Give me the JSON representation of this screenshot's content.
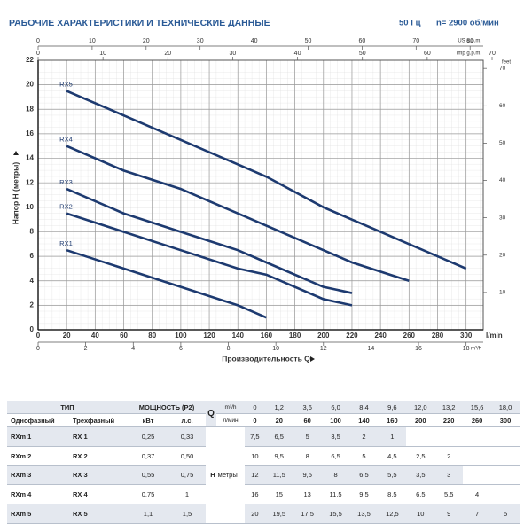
{
  "header": {
    "title": "РАБОЧИЕ ХАРАКТЕРИСТИКИ И ТЕХНИЧЕСКИЕ ДАННЫЕ",
    "frequency": "50 Гц",
    "speed": "n= 2900 об/мин"
  },
  "chart_data": {
    "type": "line",
    "xlabel": "Производительность Q",
    "ylabel": "Напор H (метры)",
    "xunit": "l/min",
    "xlim": [
      0,
      312
    ],
    "xticks": [
      0,
      20,
      40,
      60,
      80,
      100,
      120,
      140,
      160,
      180,
      200,
      220,
      240,
      260,
      280,
      300
    ],
    "ylim": [
      0,
      22
    ],
    "yticks": [
      0,
      2,
      4,
      6,
      8,
      10,
      12,
      14,
      16,
      18,
      20,
      22
    ],
    "grid": true,
    "us_gpm": {
      "label": "US g.p.m.",
      "ticks": [
        0,
        10,
        20,
        30,
        40,
        50,
        60,
        70,
        80
      ]
    },
    "imp_gpm": {
      "label": "Imp g.p.m.",
      "ticks": [
        0,
        10,
        20,
        30,
        40,
        50,
        60,
        70
      ]
    },
    "m3h": {
      "label": "m³/h",
      "ticks": [
        0,
        2,
        4,
        6,
        8,
        10,
        12,
        14,
        16,
        18
      ]
    },
    "feet": {
      "label": "feet",
      "ticks": [
        10,
        20,
        30,
        40,
        50,
        60,
        70
      ]
    },
    "series": [
      {
        "name": "RX1",
        "color": "#1d3a70",
        "x": [
          20,
          60,
          100,
          140,
          160
        ],
        "values": [
          6.5,
          5,
          3.5,
          2,
          1
        ]
      },
      {
        "name": "RX2",
        "color": "#1d3a70",
        "x": [
          20,
          60,
          100,
          140,
          160,
          200,
          220
        ],
        "values": [
          9.5,
          8,
          6.5,
          5,
          4.5,
          2.5,
          2
        ]
      },
      {
        "name": "RX3",
        "color": "#1d3a70",
        "x": [
          20,
          60,
          100,
          140,
          160,
          200,
          220
        ],
        "values": [
          11.5,
          9.5,
          8,
          6.5,
          5.5,
          3.5,
          3
        ]
      },
      {
        "name": "RX4",
        "color": "#1d3a70",
        "x": [
          20,
          60,
          100,
          140,
          160,
          200,
          220,
          260
        ],
        "values": [
          15,
          13,
          11.5,
          9.5,
          8.5,
          6.5,
          5.5,
          4
        ]
      },
      {
        "name": "RX5",
        "color": "#1d3a70",
        "x": [
          20,
          60,
          100,
          140,
          160,
          200,
          220,
          260,
          300
        ],
        "values": [
          19.5,
          17.5,
          15.5,
          13.5,
          12.5,
          10,
          9,
          7,
          5
        ]
      }
    ]
  },
  "table": {
    "header": {
      "type": "ТИП",
      "power": "МОЩНОСТЬ (P2)",
      "q": "Q",
      "q_unit_m3h": "m³/h",
      "q_unit_lmin": "л/мин",
      "single_phase": "Однофазный",
      "three_phase": "Трехфазный",
      "kw": "кВт",
      "hp": "л.с.",
      "h": "H",
      "h_unit": "метры"
    },
    "flow_m3h": [
      "0",
      "1,2",
      "3,6",
      "6,0",
      "8,4",
      "9,6",
      "12,0",
      "13,2",
      "15,6",
      "18,0"
    ],
    "flow_lmin": [
      "0",
      "20",
      "60",
      "100",
      "140",
      "160",
      "200",
      "220",
      "260",
      "300"
    ],
    "rows": [
      {
        "single": "RXm 1",
        "three": "RX 1",
        "kw": "0,25",
        "hp": "0,33",
        "h": [
          "7,5",
          "6,5",
          "5",
          "3,5",
          "2",
          "1"
        ]
      },
      {
        "single": "RXm 2",
        "three": "RX 2",
        "kw": "0,37",
        "hp": "0,50",
        "h": [
          "10",
          "9,5",
          "8",
          "6,5",
          "5",
          "4,5",
          "2,5",
          "2"
        ]
      },
      {
        "single": "RXm 3",
        "three": "RX 3",
        "kw": "0,55",
        "hp": "0,75",
        "h": [
          "12",
          "11,5",
          "9,5",
          "8",
          "6,5",
          "5,5",
          "3,5",
          "3"
        ]
      },
      {
        "single": "RXm 4",
        "three": "RX 4",
        "kw": "0,75",
        "hp": "1",
        "h": [
          "16",
          "15",
          "13",
          "11,5",
          "9,5",
          "8,5",
          "6,5",
          "5,5",
          "4"
        ]
      },
      {
        "single": "RXm 5",
        "three": "RX 5",
        "kw": "1,1",
        "hp": "1,5",
        "h": [
          "20",
          "19,5",
          "17,5",
          "15,5",
          "13,5",
          "12,5",
          "10",
          "9",
          "7",
          "5"
        ]
      }
    ]
  }
}
